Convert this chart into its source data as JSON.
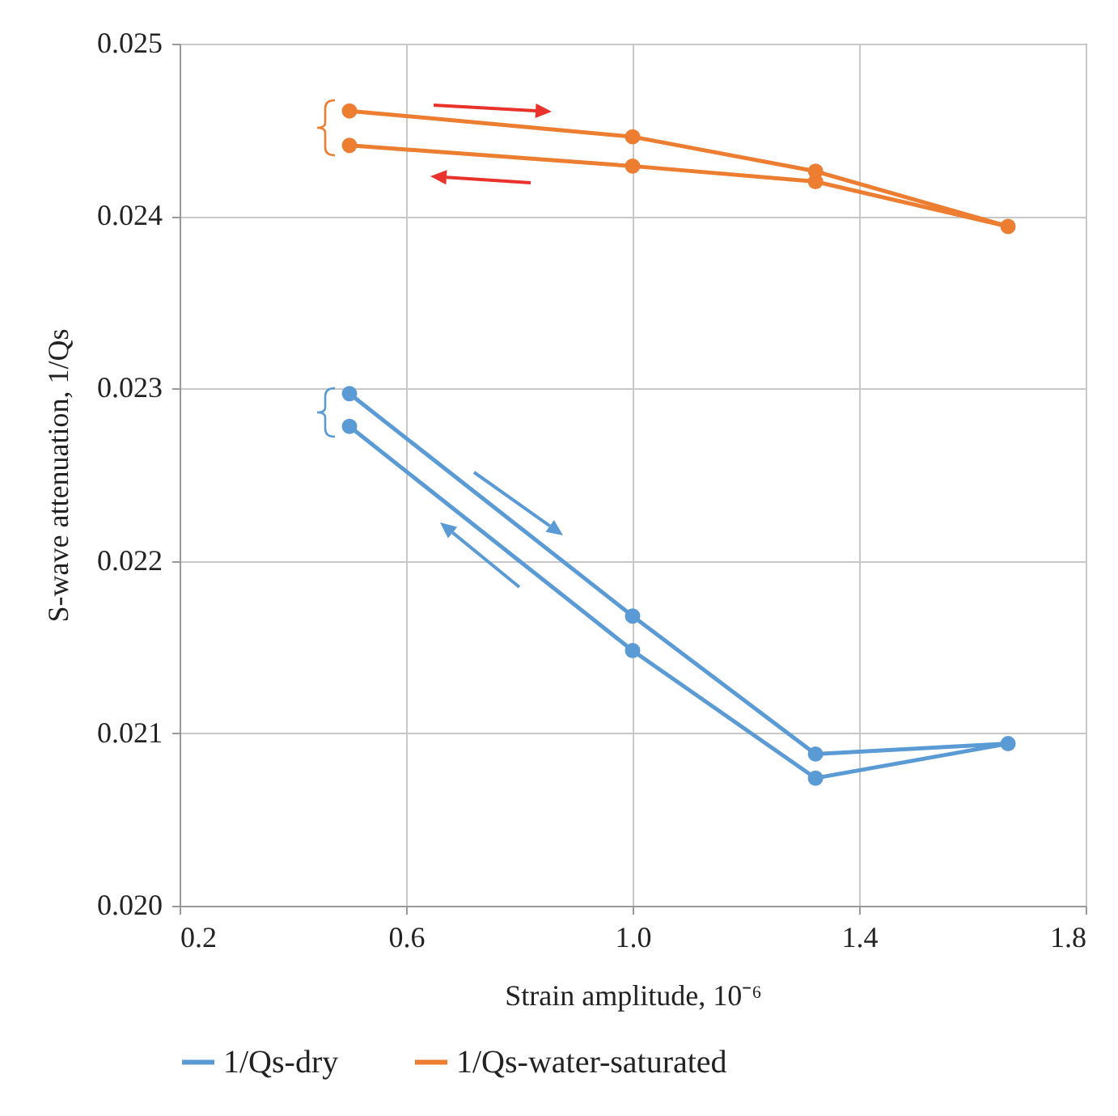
{
  "chart_data": {
    "type": "line",
    "xlabel": "Strain amplitude, 10⁻⁶",
    "ylabel": "S-wave attenuation, 1/Qs",
    "xlim": [
      0.2,
      1.8
    ],
    "xticks": [
      "0.2",
      {
        "value": 0.6,
        "label": "0.6"
      },
      {
        "value": 1,
        "label": "1.0"
      },
      {
        "value": 1.4,
        "label": "1.4"
      },
      {
        "value": 1.8,
        "label": "1.8"
      }
    ],
    "ylim": [
      0.02,
      0.025
    ],
    "yticks": [
      {
        "value": 0.02,
        "label": "0.020"
      },
      {
        "value": 0.021,
        "label": "0.021"
      },
      {
        "value": 0.022,
        "label": "0.022"
      },
      {
        "value": 0.023,
        "label": "0.023"
      },
      {
        "value": 0.024,
        "label": "0.024"
      },
      {
        "value": 0.025,
        "label": "0.025"
      }
    ],
    "grid": true,
    "legend": "bottom",
    "marker": "circle",
    "line_style": "solid",
    "series": [
      {
        "name": "1/Qs-dry",
        "color": "#5b9bd5",
        "x": [
          0.5,
          1.0,
          1.323,
          1.663,
          1.323,
          1.0,
          0.5
        ],
        "values": [
          0.02297,
          0.02168,
          0.02088,
          0.02094,
          0.02074,
          0.02148,
          0.02278
        ]
      },
      {
        "name": "1/Qs-water-saturated",
        "color": "#ed7d31",
        "x": [
          0.5,
          1.0,
          1.323,
          1.663,
          1.323,
          1.0,
          0.5
        ],
        "values": [
          0.02461,
          0.02446,
          0.02426,
          0.02394,
          0.0242,
          0.02429,
          0.02441
        ]
      }
    ]
  }
}
